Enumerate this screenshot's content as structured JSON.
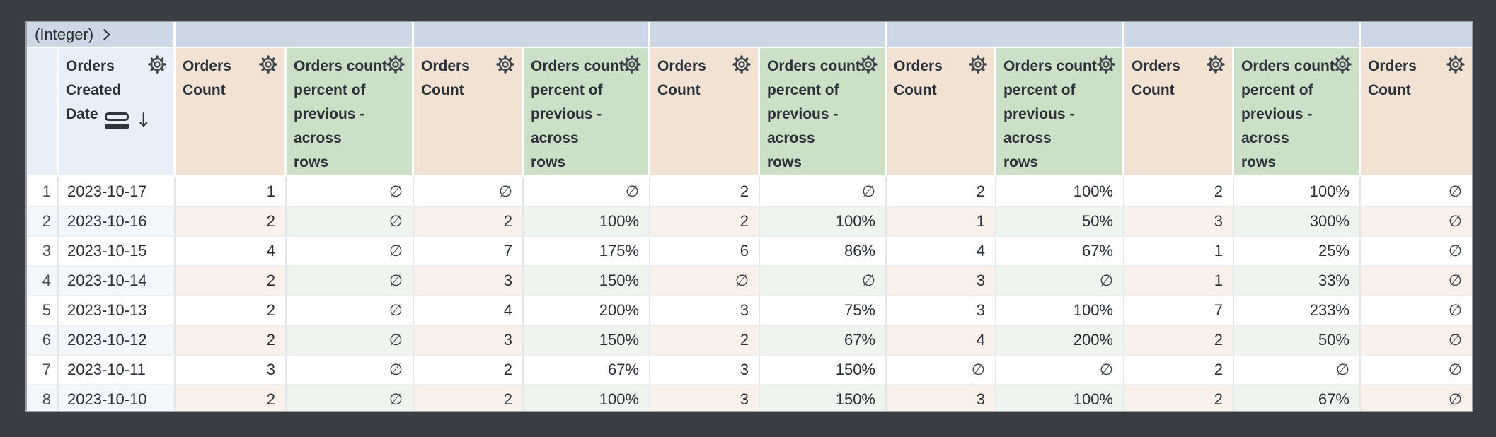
{
  "pivot_header": {
    "label": "(Integer)"
  },
  "columns": [
    {
      "kind": "index",
      "lines": [],
      "gear": false,
      "sort_desc": false
    },
    {
      "kind": "dimension",
      "lines": [
        "Orders",
        "Created",
        "Date"
      ],
      "gear": true,
      "sort_desc": true
    },
    {
      "kind": "measure",
      "lines": [
        "Orders",
        "Count"
      ],
      "gear": true,
      "sort_desc": false
    },
    {
      "kind": "percent",
      "lines": [
        "Orders count",
        "percent of",
        "previous -",
        "across",
        "rows"
      ],
      "gear": true,
      "sort_desc": false
    },
    {
      "kind": "measure",
      "lines": [
        "Orders",
        "Count"
      ],
      "gear": true,
      "sort_desc": false
    },
    {
      "kind": "percent",
      "lines": [
        "Orders count",
        "percent of",
        "previous -",
        "across",
        "rows"
      ],
      "gear": true,
      "sort_desc": false
    },
    {
      "kind": "measure",
      "lines": [
        "Orders",
        "Count"
      ],
      "gear": true,
      "sort_desc": false
    },
    {
      "kind": "percent",
      "lines": [
        "Orders count",
        "percent of",
        "previous -",
        "across",
        "rows"
      ],
      "gear": true,
      "sort_desc": false
    },
    {
      "kind": "measure",
      "lines": [
        "Orders",
        "Count"
      ],
      "gear": true,
      "sort_desc": false
    },
    {
      "kind": "percent",
      "lines": [
        "Orders count",
        "percent of",
        "previous -",
        "across",
        "rows"
      ],
      "gear": true,
      "sort_desc": false
    },
    {
      "kind": "measure",
      "lines": [
        "Orders",
        "Count"
      ],
      "gear": true,
      "sort_desc": false
    },
    {
      "kind": "percent",
      "lines": [
        "Orders count",
        "percent of",
        "previous -",
        "across",
        "rows"
      ],
      "gear": true,
      "sort_desc": false
    },
    {
      "kind": "measure",
      "lines": [
        "Orders",
        "Count"
      ],
      "gear": true,
      "sort_desc": false
    }
  ],
  "rows": [
    {
      "idx": "1",
      "date": "2023-10-17",
      "values": [
        "1",
        "∅",
        "∅",
        "∅",
        "2",
        "∅",
        "2",
        "100%",
        "2",
        "100%",
        "∅"
      ]
    },
    {
      "idx": "2",
      "date": "2023-10-16",
      "values": [
        "2",
        "∅",
        "2",
        "100%",
        "2",
        "100%",
        "1",
        "50%",
        "3",
        "300%",
        "∅"
      ]
    },
    {
      "idx": "3",
      "date": "2023-10-15",
      "values": [
        "4",
        "∅",
        "7",
        "175%",
        "6",
        "86%",
        "4",
        "67%",
        "1",
        "25%",
        "∅"
      ]
    },
    {
      "idx": "4",
      "date": "2023-10-14",
      "values": [
        "2",
        "∅",
        "3",
        "150%",
        "∅",
        "∅",
        "3",
        "∅",
        "1",
        "33%",
        "∅"
      ]
    },
    {
      "idx": "5",
      "date": "2023-10-13",
      "values": [
        "2",
        "∅",
        "4",
        "200%",
        "3",
        "75%",
        "3",
        "100%",
        "7",
        "233%",
        "∅"
      ]
    },
    {
      "idx": "6",
      "date": "2023-10-12",
      "values": [
        "2",
        "∅",
        "3",
        "150%",
        "2",
        "67%",
        "4",
        "200%",
        "2",
        "50%",
        "∅"
      ]
    },
    {
      "idx": "7",
      "date": "2023-10-11",
      "values": [
        "3",
        "∅",
        "2",
        "67%",
        "3",
        "150%",
        "∅",
        "∅",
        "2",
        "∅",
        "∅"
      ]
    },
    {
      "idx": "8",
      "date": "2023-10-10",
      "values": [
        "2",
        "∅",
        "2",
        "100%",
        "3",
        "150%",
        "3",
        "100%",
        "2",
        "67%",
        "∅"
      ]
    }
  ],
  "icons": {
    "gear": "settings-gear",
    "sort_field": "field-pill",
    "sort_direction_arrow": "↓",
    "pivot_chevron": "chevron-right",
    "null_symbol": "∅"
  },
  "colors": {
    "canvas_bg": "#3a3e44",
    "pivot_bar_bg": "#ccd8e5",
    "dimension_header_bg": "#e9eff8",
    "measure_header_bg": "#f1e2d3",
    "percent_header_bg": "#cbe0c6",
    "stripe_dimension": "#f3f6fa",
    "stripe_measure": "#f9f1ea",
    "stripe_percent": "#eef5ee",
    "text": "#282f36"
  }
}
